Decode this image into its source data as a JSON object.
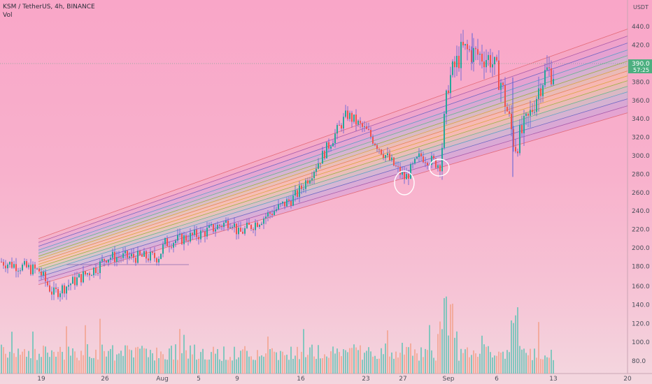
{
  "header": {
    "symbol_line": "KSM / TetherUS, 4h, BINANCE",
    "indicator": "Vol"
  },
  "price_axis": {
    "unit": "USDT",
    "ticks": [
      440,
      420,
      400,
      380,
      360,
      340,
      320,
      300,
      280,
      260,
      240,
      220,
      200,
      180,
      160,
      140,
      120,
      100,
      80
    ],
    "ticks_text": [
      "440.0",
      "420.0",
      "400.0",
      "380.0",
      "360.0",
      "340.0",
      "320.0",
      "300.0",
      "280.0",
      "260.0",
      "240.0",
      "220.0",
      "200.0",
      "180.0",
      "160.0",
      "140.0",
      "120.0",
      "100.0",
      "80.0"
    ],
    "last_price": "390.0",
    "countdown": "57:25"
  },
  "time_axis": {
    "labels": [
      "19",
      "26",
      "Aug",
      "5",
      "9",
      "16",
      "23",
      "27",
      "Sep",
      "6",
      "13",
      "20"
    ]
  },
  "colors": {
    "candle_up": "#26a69a",
    "candle_down": "#ef5350",
    "candle_wick": "#5b5fd6",
    "price_label_bg": "#4caf80",
    "annotation": "#ffffff"
  },
  "chart_data": {
    "type": "candlestick",
    "x_labels": [
      "19",
      "26",
      "Aug",
      "5",
      "9",
      "16",
      "23",
      "27",
      "Sep",
      "6",
      "13",
      "20"
    ],
    "close_path": [
      [
        "start",
        185
      ],
      [
        "19",
        175
      ],
      [
        "19+",
        150
      ],
      [
        "26-",
        180
      ],
      [
        "26",
        190
      ],
      [
        "Aug-",
        190
      ],
      [
        "Aug",
        205
      ],
      [
        "5",
        215
      ],
      [
        "9-",
        230
      ],
      [
        "9",
        215
      ],
      [
        "16-",
        255
      ],
      [
        "16",
        265
      ],
      [
        "16+",
        300
      ],
      [
        "23-",
        345
      ],
      [
        "23",
        325
      ],
      [
        "27-",
        305
      ],
      [
        "27",
        275
      ],
      [
        "Sep-",
        300
      ],
      [
        "Sep",
        290
      ],
      [
        "Sep+",
        380
      ],
      [
        "Sep++",
        415
      ],
      [
        "6-",
        405
      ],
      [
        "6",
        380
      ],
      [
        "6+",
        310
      ],
      [
        "13-",
        340
      ],
      [
        "13",
        375
      ],
      [
        "13+",
        392
      ],
      [
        "end",
        390
      ]
    ],
    "channel": {
      "type": "regression-channel",
      "start_value": 182,
      "end_value_center": 395,
      "band_offsets": [
        -30,
        -22,
        -15,
        -8,
        0,
        8,
        15,
        22,
        30
      ]
    },
    "volume_axis": {
      "ticks": [
        160,
        140,
        120,
        100,
        80
      ]
    },
    "annotations": [
      "circle near 27",
      "circle near Sep"
    ]
  }
}
